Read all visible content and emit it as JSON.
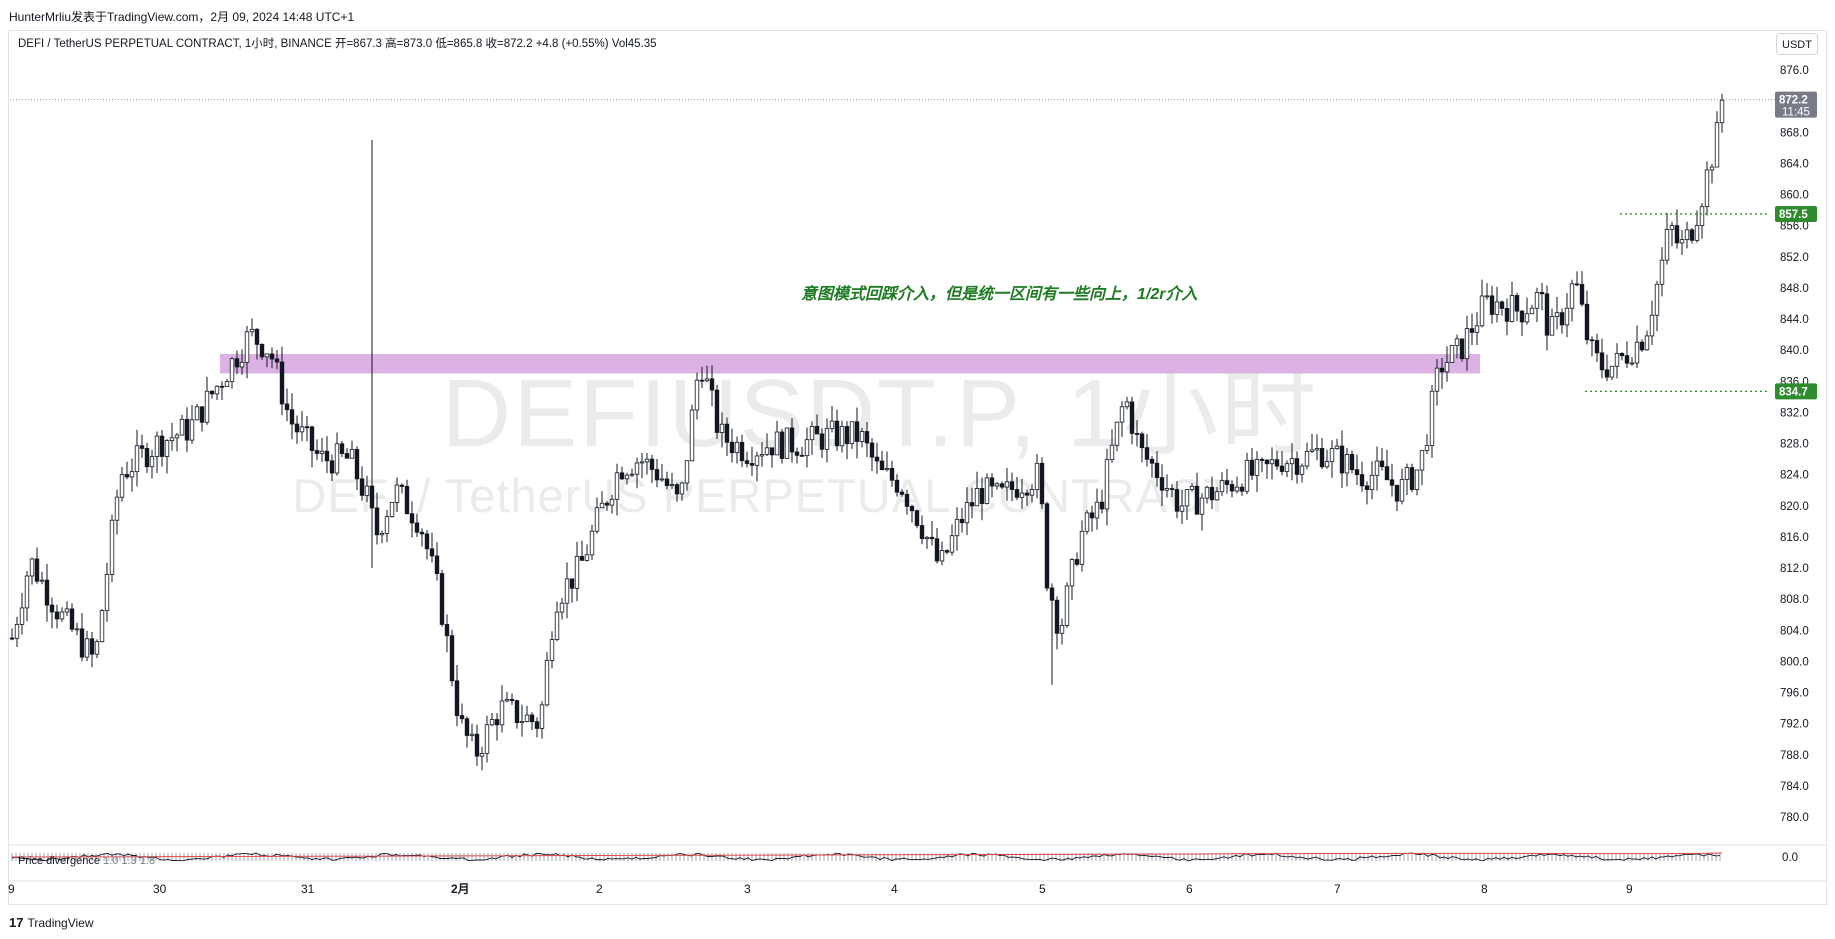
{
  "header": {
    "author_line": "HunterMrliu发表于TradingView.com，2月 09, 2024 14:48 UTC+1",
    "symbol_line": "DEFI / TetherUS PERPETUAL CONTRACT, 1小时, BINANCE  开=867.3  高=873.0  低=865.8  收=872.2  +4.8 (+0.55%)  Vol45.35",
    "currency": "USDT"
  },
  "watermark": {
    "line1": "DEFIUSDT.P, 1小时",
    "line2": "DEFI / TetherUS PERPETUAL CONTRACT"
  },
  "annotation": "意图模式回踩介入，但是统一区间有一些向上，1/2r介入",
  "price_tags": {
    "last_price": "872.2",
    "countdown": "11:45",
    "level_high": "857.5",
    "level_low": "834.7"
  },
  "indicator": {
    "name": "Price divergence",
    "params": "1.0  1.3  1.8",
    "zero_label": "0.0"
  },
  "footer": {
    "logo": "17",
    "brand": "TradingView"
  },
  "colors": {
    "up": "#131722",
    "down": "#131722",
    "zone": "#d8a8e0",
    "level": "#2e8b2e",
    "tag_green": "#2e8b2e",
    "tag_gray": "#787b86"
  },
  "chart_data": {
    "type": "candlestick",
    "timeframe": "1小时",
    "y_ticks": [
      876.0,
      872.0,
      868.0,
      864.0,
      860.0,
      856.0,
      852.0,
      848.0,
      844.0,
      840.0,
      836.0,
      832.0,
      828.0,
      824.0,
      820.0,
      816.0,
      812.0,
      808.0,
      804.0,
      800.0,
      796.0,
      792.0,
      788.0,
      784.0,
      780.0
    ],
    "x_ticks": [
      "9",
      "30",
      "31",
      "2月",
      "2",
      "3",
      "4",
      "5",
      "6",
      "7",
      "8",
      "9"
    ],
    "zone": {
      "from": 837.0,
      "to": 839.5,
      "start_label": "30",
      "end_label": "9"
    },
    "levels": [
      857.5,
      834.7
    ],
    "anchors": [
      {
        "x": "9",
        "price": 803
      },
      {
        "x": "30",
        "price": 822
      },
      {
        "x": "31",
        "price": 832
      },
      {
        "x": "2月",
        "price": 786
      },
      {
        "x": "2",
        "price": 822
      },
      {
        "x": "3",
        "price": 827
      },
      {
        "x": "4",
        "price": 827
      },
      {
        "x": "5",
        "price": 808
      },
      {
        "x": "6",
        "price": 824
      },
      {
        "x": "7",
        "price": 826
      },
      {
        "x": "8",
        "price": 845
      },
      {
        "x": "9",
        "price": 842
      },
      {
        "x": "last",
        "price": 872.2
      }
    ],
    "visible_range": [
      776.0,
      878.0
    ]
  }
}
